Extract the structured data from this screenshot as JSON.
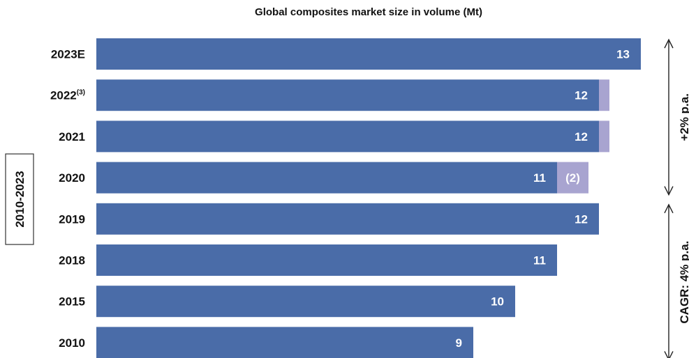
{
  "chart_data": {
    "type": "bar",
    "orientation": "horizontal",
    "title": "Global composites market size in volume (Mt)",
    "categories": [
      "2023E",
      "2022",
      "2021",
      "2020",
      "2019",
      "2018",
      "2015",
      "2010"
    ],
    "category_superscripts": [
      "",
      "(3)",
      "",
      "",
      "",
      "",
      "",
      ""
    ],
    "series": [
      {
        "values": [
          13,
          12,
          12,
          11,
          12,
          11,
          10,
          9
        ],
        "color": "#4a6ca8"
      },
      {
        "values": [
          0,
          0.25,
          0.25,
          0.75,
          0,
          0,
          0,
          0
        ],
        "color": "#a8a4d0"
      }
    ],
    "data_labels": [
      "13",
      "12",
      "12",
      "11",
      "12",
      "11",
      "10",
      "9"
    ],
    "segment_note_label": "(2)",
    "segment_note_category": "2020",
    "period_box_label": "2010-2023",
    "growth_brackets": [
      {
        "label": "+2% p.a.",
        "from": "2023E",
        "to": "2020"
      },
      {
        "label": "CAGR: 4% p.a.",
        "from": "2019",
        "to": "2010"
      }
    ],
    "xlim": [
      0,
      13.2
    ],
    "grid": false,
    "legend": "none",
    "colors": {
      "bar": "#4a6ca8",
      "bar_light": "#a8a4d0",
      "text": "#111111",
      "bracket": "#222222"
    }
  }
}
